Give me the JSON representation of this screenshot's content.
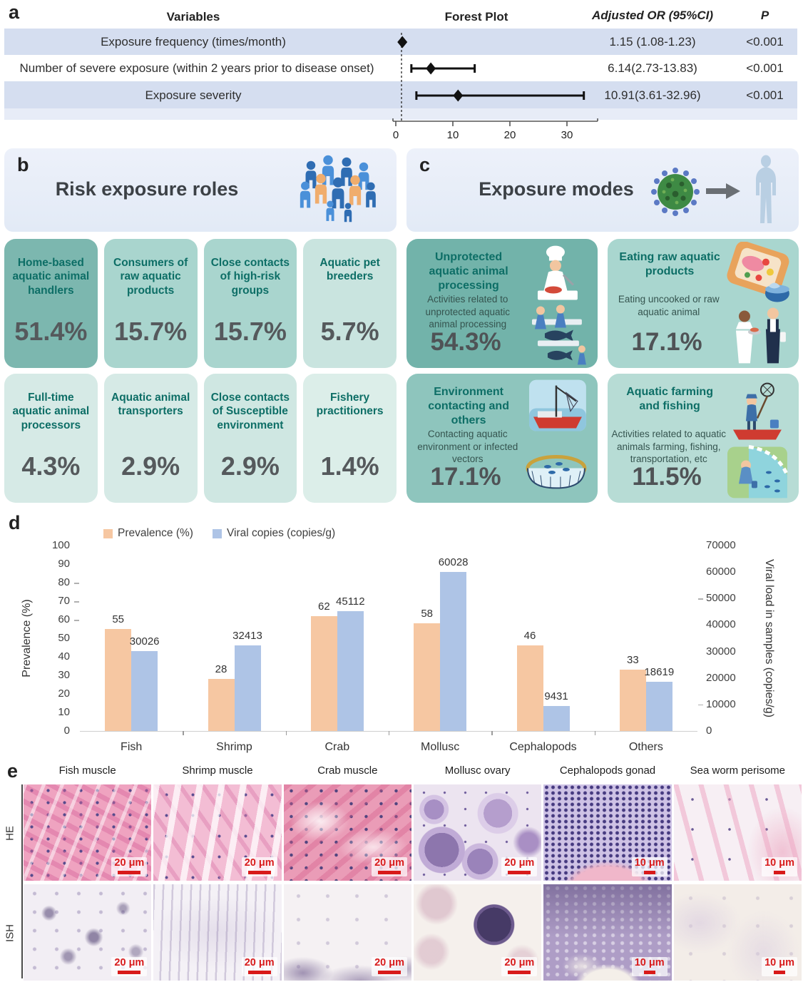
{
  "panel_a": {
    "label": "a",
    "headers": {
      "variables": "Variables",
      "forest_plot": "Forest Plot",
      "adjusted_or": "Adjusted OR (95%CI)",
      "p": "P"
    },
    "rows": [
      {
        "variable": "Exposure frequency (times/month)",
        "or_ci": "1.15 (1.08-1.23)",
        "p": "<0.001",
        "estimate": 1.15,
        "ci_low": 1.08,
        "ci_high": 1.23
      },
      {
        "variable": "Number of severe exposure (within 2 years prior to disease onset)",
        "or_ci": "6.14(2.73-13.83)",
        "p": "<0.001",
        "estimate": 6.14,
        "ci_low": 2.73,
        "ci_high": 13.83
      },
      {
        "variable": "Exposure severity",
        "or_ci": "10.91(3.61-32.96)",
        "p": "<0.001",
        "estimate": 10.91,
        "ci_low": 3.61,
        "ci_high": 32.96
      }
    ],
    "axis_ticks": [
      0,
      10,
      20,
      30
    ],
    "reference_value": 1,
    "band_color": "#d5def0"
  },
  "panel_b": {
    "label": "b",
    "title": "Risk exposure roles",
    "icon": "people-group-icon",
    "cards": [
      {
        "title": "Home-based aquatic animal handlers",
        "value": "51.4%",
        "bg": "#7cb7af"
      },
      {
        "title": "Consumers of raw aquatic products",
        "value": "15.7%",
        "bg": "#a9d5ce"
      },
      {
        "title": "Close contacts of high-risk groups",
        "value": "15.7%",
        "bg": "#a9d5ce"
      },
      {
        "title": "Aquatic pet breeders",
        "value": "5.7%",
        "bg": "#c9e4df"
      },
      {
        "title": "Full-time aquatic animal processors",
        "value": "4.3%",
        "bg": "#d6eae6"
      },
      {
        "title": "Aquatic animal transporters",
        "value": "2.9%",
        "bg": "#d6eae6"
      },
      {
        "title": "Close contacts of Susceptible environment",
        "value": "2.9%",
        "bg": "#cfe7e2"
      },
      {
        "title": "Fishery practitioners",
        "value": "1.4%",
        "bg": "#dceee9"
      }
    ]
  },
  "panel_c": {
    "label": "c",
    "title": "Exposure modes",
    "icons": [
      "virus-icon",
      "arrow-icon",
      "human-silhouette-icon"
    ],
    "cards": [
      {
        "title": "Unprotected aquatic animal processing",
        "desc": "Activities related to unprotected aquatic animal processing",
        "value": "54.3%",
        "bg": "#72b3aa",
        "illustration": "chef-fish-processing"
      },
      {
        "title": "Eating raw aquatic products",
        "desc": "Eating uncooked or raw aquatic animal",
        "value": "17.1%",
        "bg": "#a9d6cf",
        "illustration": "raw-seafood-serving"
      },
      {
        "title": "Environment contacting and others",
        "desc": "Contacting aquatic environment or infected vectors",
        "value": "17.1%",
        "bg": "#8ec5bd",
        "illustration": "fishing-boat-and-cage"
      },
      {
        "title": "Aquatic farming and fishing",
        "desc": "Activities related to aquatic animals farming, fishing, transportation, etc",
        "value": "11.5%",
        "bg": "#b7dcd5",
        "illustration": "fisherman-and-pond"
      }
    ]
  },
  "panel_d": {
    "label": "d"
  },
  "chart_data": {
    "type": "bar",
    "categories": [
      "Fish",
      "Shrimp",
      "Crab",
      "Mollusc",
      "Cephalopods",
      "Others"
    ],
    "series": [
      {
        "name": "Prevalence (%)",
        "axis": "left",
        "color": "#f6c7a2",
        "values": [
          55,
          28,
          62,
          58,
          46,
          33
        ]
      },
      {
        "name": "Viral copies (copies/g)",
        "axis": "right",
        "color": "#aec4e6",
        "values": [
          30026,
          32413,
          45112,
          60028,
          9431,
          18619
        ]
      }
    ],
    "left_axis": {
      "label": "Prevalence (%)",
      "min": 0,
      "max": 100,
      "step": 10
    },
    "right_axis": {
      "label": "Viral load in samples (copies/g)",
      "min": 0,
      "max": 70000,
      "step": 10000
    },
    "legend_position": "top",
    "grid": false
  },
  "panel_e": {
    "label": "e",
    "columns": [
      "Fish muscle",
      "Shrimp muscle",
      "Crab muscle",
      "Mollusc ovary",
      "Cephalopods gonad",
      "Sea worm perisome"
    ],
    "row_labels": [
      "HE",
      "ISH"
    ],
    "scale_bars": [
      [
        "20 μm",
        "20 μm",
        "20 μm",
        "20 μm",
        "10 μm",
        "10 μm"
      ],
      [
        "20 μm",
        "20 μm",
        "20 μm",
        "20 μm",
        "10 μm",
        "10 μm"
      ]
    ],
    "scale_bar_color": "#d81a1a"
  }
}
